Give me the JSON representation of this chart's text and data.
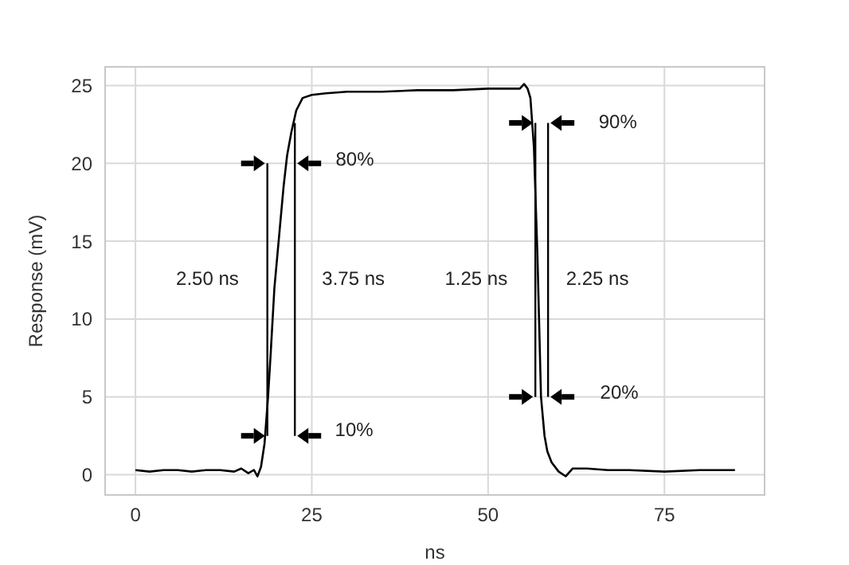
{
  "chart_data": {
    "type": "line",
    "xlabel": "ns",
    "ylabel": "Response (mV)",
    "x": [
      0,
      2,
      4,
      6,
      8,
      10,
      12,
      14,
      15,
      16,
      16.8,
      17.3,
      17.8,
      18.3,
      18.8,
      19.2,
      19.7,
      20.3,
      21,
      21.5,
      22.1,
      22.8,
      23.7,
      25,
      27,
      30,
      35,
      40,
      45,
      50,
      53,
      54.5,
      55.1,
      55.6,
      56,
      56.5,
      57,
      57.5,
      58,
      58.4,
      59,
      60,
      61,
      62,
      64,
      67,
      70,
      75,
      80,
      85
    ],
    "series": [
      {
        "color": "#000000",
        "values": [
          0.3,
          0.2,
          0.3,
          0.3,
          0.2,
          0.3,
          0.3,
          0.2,
          0.4,
          0.1,
          0.3,
          -0.1,
          0.5,
          2,
          5,
          8,
          12,
          15,
          18.5,
          20.5,
          22,
          23.4,
          24.2,
          24.4,
          24.5,
          24.6,
          24.6,
          24.7,
          24.7,
          24.8,
          24.8,
          24.8,
          25.1,
          24.8,
          24.2,
          21,
          14,
          5,
          2.5,
          1.5,
          0.8,
          0.2,
          -0.1,
          0.4,
          0.4,
          0.3,
          0.3,
          0.2,
          0.3,
          0.3
        ]
      }
    ],
    "xlim": [
      -4.3,
      89.2
    ],
    "ylim": [
      -1.3,
      26.2
    ],
    "xticks": [
      0,
      25,
      50,
      75
    ],
    "yticks": [
      0,
      5,
      10,
      15,
      20,
      25
    ],
    "grid": true,
    "legend": false,
    "marker": "none",
    "line_style": "solid",
    "annotations": [
      "2.50 ns",
      "3.75 ns",
      "80%",
      "10%",
      "1.25 ns",
      "2.25 ns",
      "90%",
      "20%"
    ]
  }
}
